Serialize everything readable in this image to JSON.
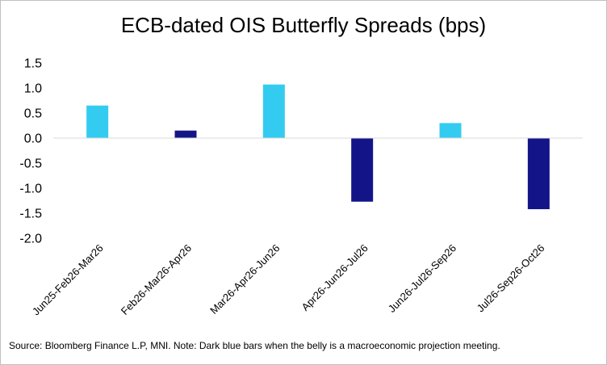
{
  "chart_data": {
    "type": "bar",
    "title": "ECB-dated OIS Butterfly Spreads (bps)",
    "categories": [
      "Jun25-Feb26-Mar26",
      "Feb26-Mar26-Apr26",
      "Mar26-Apr26-Jun26",
      "Apr26-Jun26-Jul26",
      "Jun26-Jul26-Sep26",
      "Jul26-Sep26-Oct26"
    ],
    "values": [
      0.65,
      0.15,
      1.07,
      -1.27,
      0.3,
      -1.42
    ],
    "bar_colors": [
      "#33ccf0",
      "#141489",
      "#33ccf0",
      "#141489",
      "#33ccf0",
      "#141489"
    ],
    "ylim": [
      -2.0,
      1.5
    ],
    "yticks": [
      "1.5",
      "1.0",
      "0.5",
      "0.0",
      "-0.5",
      "-1.0",
      "-1.5",
      "-2.0"
    ],
    "xlabel": "",
    "ylabel": "",
    "grid": false
  },
  "source_note": "Source: Bloomberg Finance L.P, MNI. Note: Dark blue bars when the belly is a macroeconomic projection meeting."
}
